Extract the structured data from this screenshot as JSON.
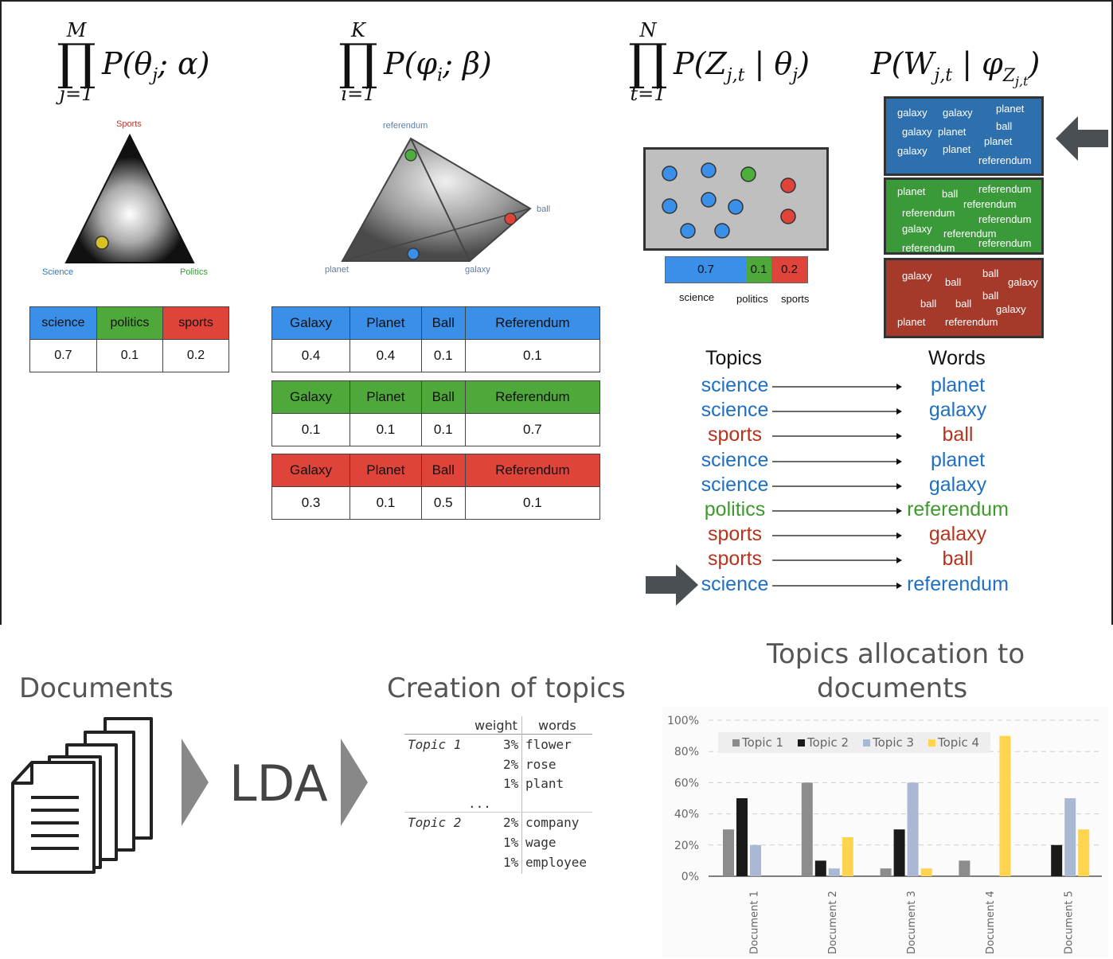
{
  "formulas": {
    "f1": {
      "upper": "M",
      "lower": "j=1",
      "expr": "P(θ_j; α)"
    },
    "f2": {
      "upper": "K",
      "lower": "i=1",
      "expr": "P(φ_i; β)"
    },
    "f3": {
      "upper": "N",
      "lower": "t=1",
      "expr": "P(Z_j,t | θ_j)"
    },
    "f4": {
      "expr": "P(W_j,t | φ_Z_j,t)"
    }
  },
  "simplex1": {
    "top": "Sports",
    "left": "Science",
    "right": "Politics"
  },
  "simplex2": {
    "top": "referendum",
    "right": "ball",
    "left": "planet",
    "bottom": "galaxy"
  },
  "theta_table": {
    "headers": [
      "science",
      "politics",
      "sports"
    ],
    "values": [
      "0.7",
      "0.1",
      "0.2"
    ]
  },
  "phi_tables": [
    {
      "headers": [
        "Galaxy",
        "Planet",
        "Ball",
        "Referendum"
      ],
      "values": [
        "0.4",
        "0.4",
        "0.1",
        "0.1"
      ]
    },
    {
      "headers": [
        "Galaxy",
        "Planet",
        "Ball",
        "Referendum"
      ],
      "values": [
        "0.1",
        "0.1",
        "0.1",
        "0.7"
      ]
    },
    {
      "headers": [
        "Galaxy",
        "Planet",
        "Ball",
        "Referendum"
      ],
      "values": [
        "0.3",
        "0.1",
        "0.5",
        "0.1"
      ]
    }
  ],
  "z_bar": {
    "values": [
      "0.7",
      "0.1",
      "0.2"
    ],
    "labels": [
      "science",
      "politics",
      "sports"
    ]
  },
  "topic_boxes": [
    {
      "color": "#2e6fae",
      "words": [
        "galaxy",
        "galaxy",
        "planet",
        "galaxy",
        "planet",
        "ball",
        "planet",
        "galaxy",
        "planet",
        "referendum"
      ]
    },
    {
      "color": "#3a9a3a",
      "words": [
        "planet",
        "ball",
        "referendum",
        "referendum",
        "referendum",
        "referendum",
        "galaxy",
        "referendum",
        "referendum",
        "referendum"
      ]
    },
    {
      "color": "#a63a2a",
      "words": [
        "galaxy",
        "ball",
        "ball",
        "galaxy",
        "ball",
        "ball",
        "ball",
        "galaxy",
        "planet",
        "referendum"
      ]
    }
  ],
  "assign": {
    "topics_header": "Topics",
    "words_header": "Words",
    "rows": [
      {
        "topic": "science",
        "word": "planet",
        "tc": "blue",
        "wc": "blue"
      },
      {
        "topic": "science",
        "word": "galaxy",
        "tc": "blue",
        "wc": "blue"
      },
      {
        "topic": "sports",
        "word": "ball",
        "tc": "red",
        "wc": "red"
      },
      {
        "topic": "science",
        "word": "planet",
        "tc": "blue",
        "wc": "blue"
      },
      {
        "topic": "science",
        "word": "galaxy",
        "tc": "blue",
        "wc": "blue"
      },
      {
        "topic": "politics",
        "word": "referendum",
        "tc": "green",
        "wc": "green"
      },
      {
        "topic": "sports",
        "word": "galaxy",
        "tc": "red",
        "wc": "red"
      },
      {
        "topic": "sports",
        "word": "ball",
        "tc": "red",
        "wc": "red"
      },
      {
        "topic": "science",
        "word": "referendum",
        "tc": "blue",
        "wc": "blue"
      }
    ]
  },
  "bottom": {
    "documents_title": "Documents",
    "lda_label": "LDA",
    "creation_title": "Creation of topics",
    "topic_table": {
      "col_weight": "weight",
      "col_words": "words",
      "topic1": "Topic 1",
      "topic1_rows": [
        {
          "w": "3%",
          "word": "flower"
        },
        {
          "w": "2%",
          "word": "rose"
        },
        {
          "w": "1%",
          "word": "plant"
        }
      ],
      "ellipsis": "...",
      "topic2": "Topic 2",
      "topic2_rows": [
        {
          "w": "2%",
          "word": "company"
        },
        {
          "w": "1%",
          "word": "wage"
        },
        {
          "w": "1%",
          "word": "employee"
        }
      ]
    },
    "alloc_title_1": "Topics allocation to",
    "alloc_title_2": "documents"
  },
  "chart_data": {
    "type": "bar",
    "title": "Topics allocation to documents",
    "categories": [
      "Document 1",
      "Document 2",
      "Document 3",
      "Document 4",
      "Document 5"
    ],
    "series": [
      {
        "name": "Topic 1",
        "color": "#8c8c8c",
        "values": [
          30,
          60,
          5,
          10,
          0
        ]
      },
      {
        "name": "Topic 2",
        "color": "#1a1a1a",
        "values": [
          50,
          10,
          30,
          0,
          20
        ]
      },
      {
        "name": "Topic 3",
        "color": "#a9b9d3",
        "values": [
          20,
          5,
          60,
          0,
          50
        ]
      },
      {
        "name": "Topic 4",
        "color": "#ffd54f",
        "values": [
          0,
          25,
          5,
          90,
          30
        ]
      }
    ],
    "yticks": [
      "0%",
      "20%",
      "40%",
      "60%",
      "80%",
      "100%"
    ],
    "ylim": [
      0,
      100
    ],
    "grid": true,
    "legend": "top"
  }
}
